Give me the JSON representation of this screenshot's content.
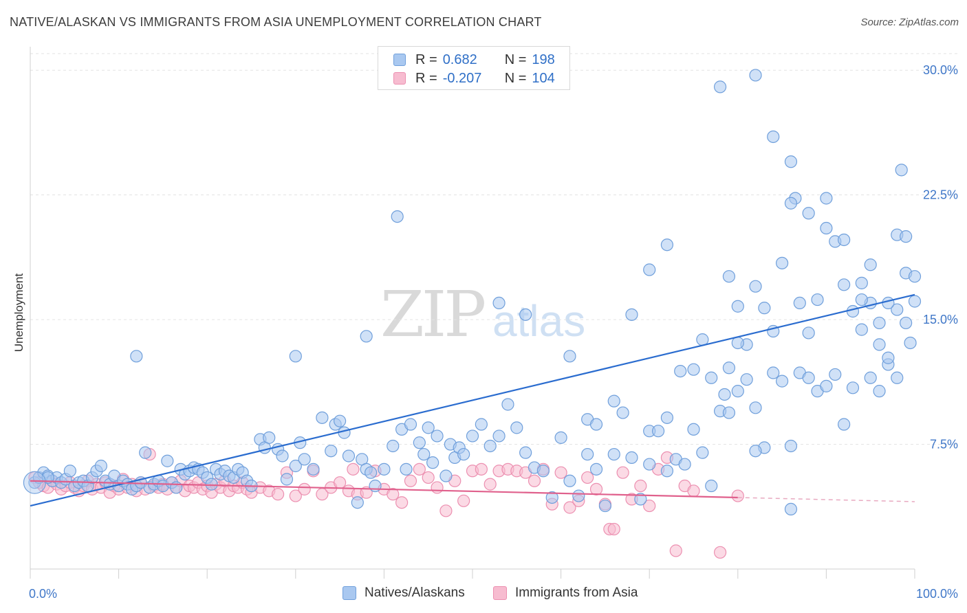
{
  "header": {
    "title": "NATIVE/ALASKAN VS IMMIGRANTS FROM ASIA UNEMPLOYMENT CORRELATION CHART",
    "source": "Source: ZipAtlas.com"
  },
  "watermark": {
    "zip": "ZIP",
    "atlas": "atlas"
  },
  "legend_top": [
    {
      "r_label": "R =",
      "r_value": "0.682",
      "n_label": "N =",
      "n_value": "198"
    },
    {
      "r_label": "R =",
      "r_value": "-0.207",
      "n_label": "N =",
      "n_value": "104"
    }
  ],
  "legend_bottom": [
    "Natives/Alaskans",
    "Immigrants from Asia"
  ],
  "colors": {
    "blue_fill": "#a9c8f0",
    "blue_stroke": "#6f9fdb",
    "blue_line": "#2a6ccf",
    "pink_fill": "#f7bcd0",
    "pink_stroke": "#ec8fb0",
    "pink_line": "#e0608c",
    "grid": "#e3e3e3",
    "tick_label": "#3f77c8"
  },
  "chart_data": {
    "type": "scatter",
    "title": "NATIVE/ALASKAN VS IMMIGRANTS FROM ASIA UNEMPLOYMENT CORRELATION CHART",
    "ylabel": "Unemployment",
    "xlabel": "",
    "xlim": [
      0,
      100
    ],
    "ylim": [
      0,
      31
    ],
    "x_tick_labels": [
      "0.0%",
      "100.0%"
    ],
    "y_ticks": [
      7.5,
      15.0,
      22.5,
      30.0
    ],
    "y_tick_labels": [
      "7.5%",
      "15.0%",
      "22.5%",
      "30.0%"
    ],
    "grid": true,
    "legend_position": "top-center",
    "series": [
      {
        "name": "Natives/Alaskans",
        "R": 0.682,
        "N": 198,
        "trend": {
          "x": [
            0,
            100
          ],
          "y": [
            3.8,
            16.5
          ]
        },
        "points": [
          [
            0.5,
            5.2
          ],
          [
            1,
            5.5
          ],
          [
            1.5,
            5.8
          ],
          [
            2,
            5.6
          ],
          [
            2.5,
            5.3
          ],
          [
            3,
            5.5
          ],
          [
            3.5,
            5.2
          ],
          [
            4,
            5.4
          ],
          [
            4.5,
            5.9
          ],
          [
            5,
            5.0
          ],
          [
            5.5,
            5.2
          ],
          [
            6,
            5.3
          ],
          [
            6.5,
            5.0
          ],
          [
            7,
            5.5
          ],
          [
            7.5,
            5.9
          ],
          [
            8,
            6.2
          ],
          [
            8.5,
            5.3
          ],
          [
            9,
            5.1
          ],
          [
            9.5,
            5.6
          ],
          [
            10,
            5.0
          ],
          [
            10.5,
            5.3
          ],
          [
            11,
            5.1
          ],
          [
            11.5,
            4.8
          ],
          [
            12,
            5.0
          ],
          [
            12.5,
            5.2
          ],
          [
            13,
            7.0
          ],
          [
            13.5,
            4.9
          ],
          [
            14,
            5.1
          ],
          [
            14.5,
            5.3
          ],
          [
            15,
            5.0
          ],
          [
            15.5,
            6.5
          ],
          [
            16,
            5.2
          ],
          [
            16.5,
            4.9
          ],
          [
            17,
            6.0
          ],
          [
            17.5,
            5.7
          ],
          [
            18,
            5.9
          ],
          [
            18.5,
            6.1
          ],
          [
            19,
            6.0
          ],
          [
            19.5,
            5.8
          ],
          [
            20,
            5.5
          ],
          [
            20.5,
            5.1
          ],
          [
            21,
            6.0
          ],
          [
            21.5,
            5.7
          ],
          [
            22,
            5.9
          ],
          [
            22.5,
            5.6
          ],
          [
            23,
            5.5
          ],
          [
            23.5,
            6.0
          ],
          [
            24,
            5.8
          ],
          [
            24.5,
            5.3
          ],
          [
            25,
            5.0
          ],
          [
            26,
            7.8
          ],
          [
            26.5,
            7.3
          ],
          [
            27,
            7.9
          ],
          [
            28,
            7.2
          ],
          [
            28.5,
            6.8
          ],
          [
            29,
            5.4
          ],
          [
            30,
            6.2
          ],
          [
            30.5,
            7.6
          ],
          [
            31,
            6.6
          ],
          [
            32,
            6.0
          ],
          [
            33,
            9.1
          ],
          [
            34,
            7.1
          ],
          [
            34.5,
            8.7
          ],
          [
            35,
            8.9
          ],
          [
            35.5,
            8.2
          ],
          [
            36,
            6.8
          ],
          [
            37,
            4.0
          ],
          [
            37.5,
            6.6
          ],
          [
            38,
            6.0
          ],
          [
            38.5,
            5.8
          ],
          [
            39,
            5.0
          ],
          [
            40,
            6.0
          ],
          [
            41,
            7.4
          ],
          [
            42,
            8.4
          ],
          [
            42.5,
            6.0
          ],
          [
            43,
            8.7
          ],
          [
            44,
            7.6
          ],
          [
            44.5,
            6.9
          ],
          [
            45,
            8.5
          ],
          [
            45.5,
            6.4
          ],
          [
            46,
            8.0
          ],
          [
            47,
            5.6
          ],
          [
            47.5,
            7.5
          ],
          [
            48,
            6.7
          ],
          [
            48.5,
            7.3
          ],
          [
            49,
            6.9
          ],
          [
            50,
            8.0
          ],
          [
            51,
            8.7
          ],
          [
            52,
            7.4
          ],
          [
            53,
            8.0
          ],
          [
            54,
            9.9
          ],
          [
            55,
            8.5
          ],
          [
            56,
            7.0
          ],
          [
            57,
            6.1
          ],
          [
            58,
            5.9
          ],
          [
            59,
            4.3
          ],
          [
            60,
            7.9
          ],
          [
            61,
            5.3
          ],
          [
            62,
            4.4
          ],
          [
            63,
            9.0
          ],
          [
            64,
            8.7
          ],
          [
            65,
            3.8
          ],
          [
            66,
            10.1
          ],
          [
            67,
            9.4
          ],
          [
            68,
            6.7
          ],
          [
            69,
            4.2
          ],
          [
            70,
            8.3
          ],
          [
            71,
            8.3
          ],
          [
            72,
            5.9
          ],
          [
            73,
            6.6
          ],
          [
            74,
            6.3
          ],
          [
            75,
            8.4
          ],
          [
            76,
            7.0
          ],
          [
            77,
            5.0
          ],
          [
            78,
            9.5
          ],
          [
            78.5,
            10.5
          ],
          [
            79,
            9.4
          ],
          [
            80,
            10.7
          ],
          [
            81,
            11.4
          ],
          [
            82,
            9.7
          ],
          [
            83,
            7.3
          ],
          [
            84,
            11.8
          ],
          [
            85,
            11.3
          ],
          [
            86,
            7.4
          ],
          [
            87,
            11.8
          ],
          [
            88,
            11.5
          ],
          [
            89,
            10.7
          ],
          [
            90,
            11.0
          ],
          [
            91,
            11.7
          ],
          [
            92,
            8.7
          ],
          [
            93,
            10.9
          ],
          [
            94,
            14.4
          ],
          [
            95,
            11.5
          ],
          [
            96,
            10.7
          ],
          [
            97,
            12.3
          ],
          [
            98,
            15.6
          ],
          [
            99,
            14.8
          ],
          [
            99.5,
            13.6
          ],
          [
            100,
            16.1
          ],
          [
            12,
            12.8
          ],
          [
            30,
            12.8
          ],
          [
            38,
            14.0
          ],
          [
            41.5,
            21.2
          ],
          [
            53,
            16.0
          ],
          [
            56,
            15.3
          ],
          [
            61,
            12.8
          ],
          [
            68,
            15.3
          ],
          [
            70,
            18.0
          ],
          [
            72,
            19.5
          ],
          [
            73.5,
            11.9
          ],
          [
            75,
            12.0
          ],
          [
            79,
            17.6
          ],
          [
            80,
            15.8
          ],
          [
            82,
            17.0
          ],
          [
            84,
            14.3
          ],
          [
            86,
            24.5
          ],
          [
            86.5,
            22.3
          ],
          [
            88,
            14.2
          ],
          [
            90,
            22.3
          ],
          [
            91,
            19.7
          ],
          [
            92,
            19.8
          ],
          [
            93,
            15.5
          ],
          [
            94,
            17.2
          ],
          [
            95,
            16.0
          ],
          [
            96,
            13.5
          ],
          [
            97,
            16.0
          ],
          [
            98,
            20.1
          ],
          [
            99,
            17.8
          ],
          [
            100,
            17.6
          ],
          [
            78,
            29.0
          ],
          [
            82,
            29.7
          ],
          [
            84,
            26.0
          ],
          [
            86,
            22.0
          ],
          [
            88,
            21.4
          ],
          [
            90,
            20.5
          ],
          [
            92,
            17.1
          ],
          [
            94,
            16.2
          ],
          [
            96,
            14.8
          ],
          [
            97,
            12.7
          ],
          [
            98,
            11.5
          ],
          [
            98.5,
            24.0
          ],
          [
            99,
            20.0
          ],
          [
            95,
            18.3
          ],
          [
            89,
            16.2
          ],
          [
            87,
            16.0
          ],
          [
            85,
            18.4
          ],
          [
            83,
            15.7
          ],
          [
            81,
            13.5
          ],
          [
            80,
            13.6
          ],
          [
            79,
            12.1
          ],
          [
            77,
            11.5
          ],
          [
            76,
            13.8
          ],
          [
            72,
            9.1
          ],
          [
            70,
            6.3
          ],
          [
            66,
            6.9
          ],
          [
            64,
            6.0
          ],
          [
            63,
            6.9
          ],
          [
            86,
            3.6
          ],
          [
            82,
            7.1
          ],
          [
            2,
            5.5
          ]
        ]
      },
      {
        "name": "Immigrants from Asia",
        "R": -0.207,
        "N": 104,
        "trend": {
          "x": [
            0,
            80
          ],
          "y": [
            5.3,
            4.3
          ]
        },
        "points": [
          [
            0.5,
            5.5
          ],
          [
            1,
            5.2
          ],
          [
            1.5,
            5.0
          ],
          [
            2,
            4.9
          ],
          [
            2.5,
            5.3
          ],
          [
            3,
            5.1
          ],
          [
            3.5,
            4.8
          ],
          [
            4,
            5.0
          ],
          [
            4.5,
            5.2
          ],
          [
            5,
            4.9
          ],
          [
            5.5,
            4.7
          ],
          [
            6,
            5.0
          ],
          [
            6.5,
            5.3
          ],
          [
            7,
            4.8
          ],
          [
            7.5,
            5.1
          ],
          [
            8,
            4.9
          ],
          [
            8.5,
            5.2
          ],
          [
            9,
            4.6
          ],
          [
            9.5,
            5.0
          ],
          [
            10,
            4.8
          ],
          [
            10.5,
            5.4
          ],
          [
            11,
            4.9
          ],
          [
            11.5,
            5.1
          ],
          [
            12,
            4.7
          ],
          [
            12.5,
            5.2
          ],
          [
            13,
            4.8
          ],
          [
            13.5,
            6.9
          ],
          [
            14,
            5.0
          ],
          [
            14.5,
            4.9
          ],
          [
            15,
            5.1
          ],
          [
            15.5,
            4.8
          ],
          [
            16,
            5.2
          ],
          [
            16.5,
            4.9
          ],
          [
            17,
            5.3
          ],
          [
            17.5,
            4.7
          ],
          [
            18,
            5.0
          ],
          [
            18.5,
            4.9
          ],
          [
            19,
            5.2
          ],
          [
            19.5,
            4.8
          ],
          [
            20,
            5.0
          ],
          [
            20.5,
            4.6
          ],
          [
            21,
            5.1
          ],
          [
            21.5,
            4.9
          ],
          [
            22,
            5.3
          ],
          [
            22.5,
            4.7
          ],
          [
            23,
            5.0
          ],
          [
            23.5,
            4.9
          ],
          [
            24,
            5.2
          ],
          [
            24.5,
            4.8
          ],
          [
            25,
            4.6
          ],
          [
            26,
            4.9
          ],
          [
            27,
            4.7
          ],
          [
            28,
            4.5
          ],
          [
            29,
            5.8
          ],
          [
            30,
            4.4
          ],
          [
            31,
            4.8
          ],
          [
            32,
            5.9
          ],
          [
            33,
            4.5
          ],
          [
            34,
            4.9
          ],
          [
            35,
            5.2
          ],
          [
            36,
            4.7
          ],
          [
            36.5,
            6.0
          ],
          [
            37,
            4.5
          ],
          [
            38,
            4.6
          ],
          [
            39,
            5.9
          ],
          [
            40,
            4.8
          ],
          [
            41,
            4.5
          ],
          [
            42,
            4.0
          ],
          [
            43,
            5.3
          ],
          [
            44,
            6.0
          ],
          [
            45,
            5.5
          ],
          [
            46,
            4.9
          ],
          [
            47,
            3.5
          ],
          [
            48,
            5.3
          ],
          [
            49,
            4.1
          ],
          [
            50,
            5.9
          ],
          [
            51,
            6.0
          ],
          [
            52,
            5.1
          ],
          [
            53,
            5.9
          ],
          [
            54,
            6.0
          ],
          [
            55,
            5.9
          ],
          [
            56,
            5.8
          ],
          [
            57,
            5.3
          ],
          [
            58,
            6.0
          ],
          [
            59,
            3.9
          ],
          [
            60,
            5.8
          ],
          [
            61,
            3.7
          ],
          [
            62,
            4.1
          ],
          [
            63,
            5.5
          ],
          [
            64,
            4.8
          ],
          [
            65,
            3.9
          ],
          [
            65.5,
            2.4
          ],
          [
            66,
            2.4
          ],
          [
            67,
            5.8
          ],
          [
            68,
            4.2
          ],
          [
            69,
            5.0
          ],
          [
            70,
            3.8
          ],
          [
            71,
            6.0
          ],
          [
            72,
            6.7
          ],
          [
            73,
            1.1
          ],
          [
            74,
            5.0
          ],
          [
            75,
            4.7
          ],
          [
            78,
            1.0
          ],
          [
            80,
            4.4
          ]
        ]
      }
    ]
  }
}
